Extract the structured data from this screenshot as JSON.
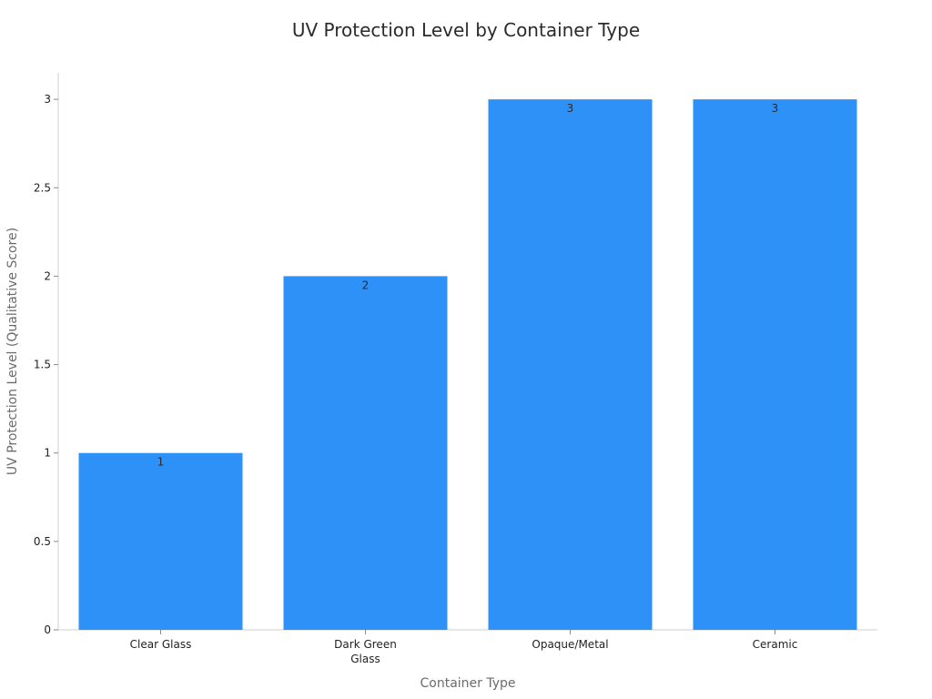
{
  "chart_data": {
    "type": "bar",
    "title": "UV Protection Level by Container Type",
    "xlabel": "Container Type",
    "ylabel": "UV Protection Level (Qualitative Score)",
    "categories": [
      [
        "Clear Glass"
      ],
      [
        "Dark Green",
        "Glass"
      ],
      [
        "Opaque/Metal"
      ],
      [
        "Ceramic"
      ]
    ],
    "values": [
      1,
      2,
      3,
      3
    ],
    "data_labels": [
      "1",
      "2",
      "3",
      "3"
    ],
    "ylim": [
      0,
      3.15
    ],
    "yticks": [
      0,
      0.5,
      1,
      1.5,
      2,
      2.5,
      3
    ],
    "ytick_labels": [
      "0",
      "0.5",
      "1",
      "1.5",
      "2",
      "2.5",
      "3"
    ],
    "grid": false,
    "legend": "none",
    "bar_color": "#2e91f7"
  }
}
